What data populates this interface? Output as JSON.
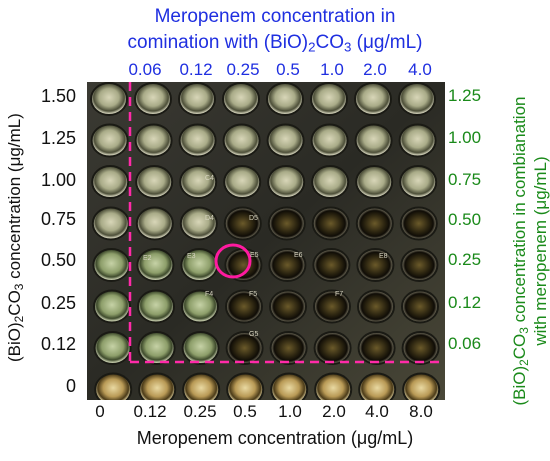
{
  "top_title_line1": "Meropenem concentration in",
  "top_title_line2_pre": "comination with (BiO)",
  "top_title_line2_sub1": "2",
  "top_title_line2_mid": "CO",
  "top_title_line2_sub2": "3",
  "top_title_line2_post": " (μg/mL)",
  "top_ticks": [
    "0.06",
    "0.12",
    "0.25",
    "0.5",
    "1.0",
    "2.0",
    "4.0"
  ],
  "bottom_ticks": [
    "0",
    "0.12",
    "0.25",
    "0.5",
    "1.0",
    "2.0",
    "4.0",
    "8.0"
  ],
  "bottom_title": "Meropenem concentration (μg/mL)",
  "left_ticks": [
    "1.50",
    "1.25",
    "1.00",
    "0.75",
    "0.50",
    "0.25",
    "0.12",
    "0"
  ],
  "left_title_pre": "(BiO)",
  "left_title_sub1": "2",
  "left_title_mid": "CO",
  "left_title_sub2": "3",
  "left_title_post": " concentration (μg/mL)",
  "right_ticks": [
    "1.25",
    "1.00",
    "0.75",
    "0.50",
    "0.25",
    "0.12",
    "0.06"
  ],
  "right_title_line1_pre": "(BiO)",
  "right_title_line1_sub1": "2",
  "right_title_line1_mid": "CO",
  "right_title_line1_sub2": "3",
  "right_title_line1_post": " concentration in combianation",
  "right_title_line2": "with meropenem (μg/mL)",
  "well_labels": {
    "D4": "D4",
    "D5": "D5",
    "E2": "E2",
    "E3": "E3",
    "E5": "E5",
    "E6": "E6",
    "E8": "E8",
    "F4": "F4",
    "F5": "F5",
    "F7": "F7",
    "G5": "G5",
    "C4": "C4"
  },
  "colors": {
    "top_blue": "#1f2fe0",
    "right_green": "#1a8a1a",
    "dashed_magenta": "#ff2aa8",
    "highlight_circle": "#ff1aa0"
  }
}
